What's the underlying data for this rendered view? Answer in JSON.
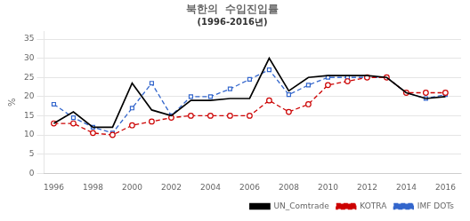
{
  "chart_data": {
    "type": "line",
    "title": "북한의  수입진입률",
    "subtitle": "(1996-2016년)",
    "ylabel": "%",
    "x": [
      1996,
      1997,
      1998,
      1999,
      2000,
      2001,
      2002,
      2003,
      2004,
      2005,
      2006,
      2007,
      2008,
      2009,
      2010,
      2011,
      2012,
      2013,
      2014,
      2015,
      2016
    ],
    "series": [
      {
        "name": "UN_Comtrade",
        "color": "#000000",
        "line_style": "solid",
        "marker": "none",
        "values": [
          13.0,
          16.0,
          12.0,
          12.0,
          23.5,
          16.5,
          15.0,
          19.0,
          19.0,
          19.5,
          19.5,
          30.0,
          21.5,
          25.0,
          25.5,
          25.5,
          25.5,
          25.0,
          21.0,
          19.5,
          20.0
        ]
      },
      {
        "name": "KOTRA",
        "color": "#cc0000",
        "line_style": "dashed",
        "marker": "circle",
        "values": [
          13.0,
          13.0,
          10.5,
          10.0,
          12.5,
          13.5,
          14.5,
          15.0,
          15.0,
          15.0,
          15.0,
          19.0,
          16.0,
          18.0,
          23.0,
          24.0,
          25.0,
          25.0,
          21.0,
          21.0,
          21.0
        ]
      },
      {
        "name": "IMF DOTs",
        "color": "#3366cc",
        "line_style": "dashed",
        "marker": "square",
        "values": [
          18.0,
          14.5,
          12.0,
          10.5,
          17.0,
          23.5,
          15.0,
          20.0,
          20.0,
          22.0,
          24.5,
          27.0,
          20.5,
          23.0,
          25.0,
          25.0,
          25.0,
          25.0,
          21.0,
          19.5,
          20.5
        ]
      }
    ],
    "xlim": [
      1995.5,
      2016.8
    ],
    "xticks": [
      1996,
      1998,
      2000,
      2002,
      2004,
      2006,
      2008,
      2010,
      2012,
      2014,
      2016
    ],
    "ylim": [
      0,
      37
    ],
    "yticks": [
      0,
      5,
      10,
      15,
      20,
      25,
      30,
      35
    ],
    "grid": true,
    "legend": "lower right"
  }
}
